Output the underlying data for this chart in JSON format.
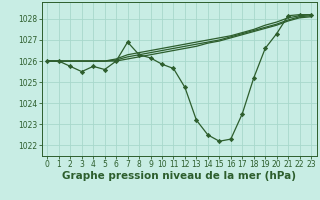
{
  "xlabel": "Graphe pression niveau de la mer (hPa)",
  "xlim": [
    -0.5,
    23.5
  ],
  "ylim": [
    1021.5,
    1028.8
  ],
  "yticks": [
    1022,
    1023,
    1024,
    1025,
    1026,
    1027,
    1028
  ],
  "xticks": [
    0,
    1,
    2,
    3,
    4,
    5,
    6,
    7,
    8,
    9,
    10,
    11,
    12,
    13,
    14,
    15,
    16,
    17,
    18,
    19,
    20,
    21,
    22,
    23
  ],
  "bg_color": "#c8ede4",
  "grid_color": "#a8d8cc",
  "line_color": "#2d5e2d",
  "main_series": [
    1026.0,
    1026.0,
    1025.75,
    1025.5,
    1025.75,
    1025.6,
    1026.0,
    1026.9,
    1026.3,
    1026.15,
    1025.85,
    1025.65,
    1024.75,
    1023.2,
    1022.5,
    1022.2,
    1022.3,
    1023.5,
    1025.2,
    1026.6,
    1027.3,
    1028.15,
    1028.2,
    1028.2
  ],
  "forecast_series": [
    [
      1026.0,
      1026.0,
      1026.0,
      1026.0,
      1026.0,
      1026.0,
      1026.1,
      1026.3,
      1026.4,
      1026.5,
      1026.6,
      1026.7,
      1026.8,
      1026.9,
      1027.0,
      1027.1,
      1027.2,
      1027.35,
      1027.5,
      1027.7,
      1027.85,
      1028.05,
      1028.15,
      1028.2
    ],
    [
      1026.0,
      1026.0,
      1026.0,
      1026.0,
      1026.0,
      1026.0,
      1026.05,
      1026.2,
      1026.3,
      1026.4,
      1026.5,
      1026.6,
      1026.7,
      1026.8,
      1026.9,
      1027.0,
      1027.15,
      1027.3,
      1027.45,
      1027.6,
      1027.75,
      1027.95,
      1028.1,
      1028.15
    ],
    [
      1026.0,
      1026.0,
      1026.0,
      1026.0,
      1026.0,
      1026.0,
      1026.0,
      1026.1,
      1026.2,
      1026.3,
      1026.4,
      1026.5,
      1026.6,
      1026.7,
      1026.85,
      1026.95,
      1027.1,
      1027.25,
      1027.4,
      1027.55,
      1027.7,
      1027.9,
      1028.05,
      1028.1
    ]
  ],
  "marker": "D",
  "markersize": 2.2,
  "linewidth": 0.9,
  "tick_fontsize": 5.5,
  "xlabel_fontsize": 7.5
}
